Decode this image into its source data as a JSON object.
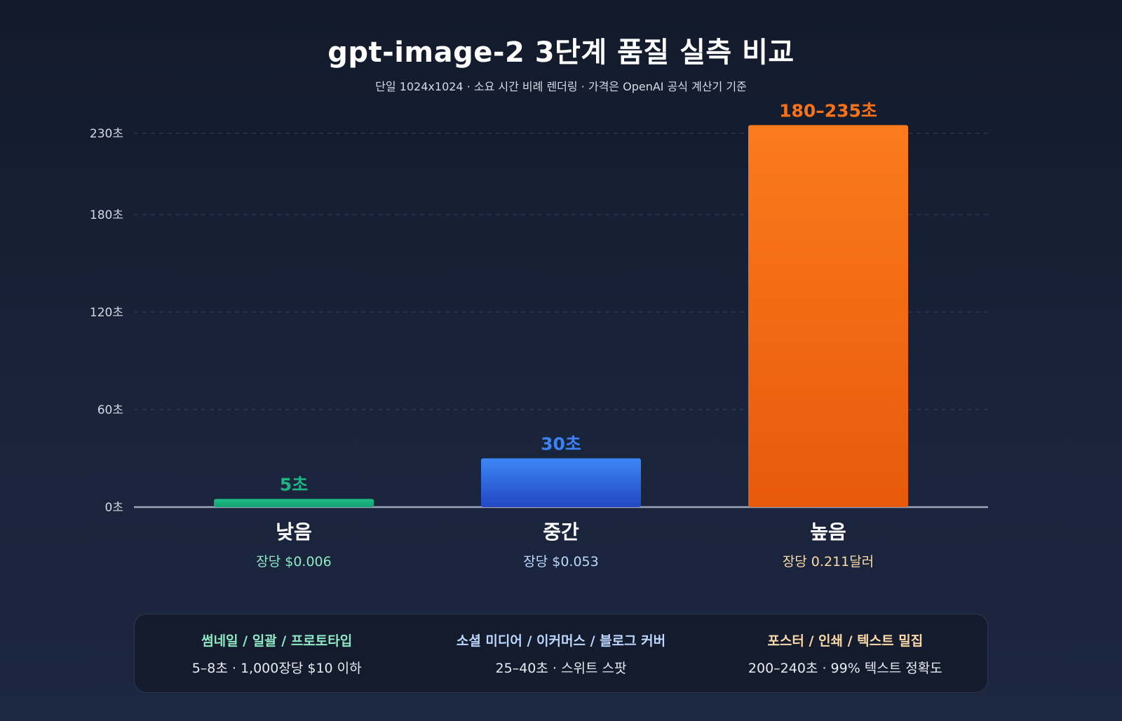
{
  "colors": {
    "low": "#1db583",
    "medium": "#3b82f6",
    "high": "#f97316",
    "low_text": "#8fe8c4",
    "medium_text": "#bdd7ff",
    "high_text": "#fcd9a8"
  },
  "chart_data": {
    "type": "bar",
    "title": "gpt-image-2 3단계 품질 실측 비교",
    "subtitle": "단일 1024x1024 · 소요 시간 비례 렌더링 · 가격은 OpenAI 공식 계산기 기준",
    "categories": [
      "낮음",
      "중간",
      "높음"
    ],
    "values": [
      5,
      30,
      235
    ],
    "value_labels": [
      "5초",
      "30초",
      "180–235초"
    ],
    "price_labels": [
      "장당 $0.006",
      "장당 $0.053",
      "장당 0.211달러"
    ],
    "y_ticks": [
      0,
      60,
      120,
      180,
      230
    ],
    "y_tick_labels": [
      "0초",
      "60초",
      "120초",
      "180초",
      "230초"
    ],
    "ylim": [
      0,
      235
    ],
    "grid": true,
    "legend": "none"
  },
  "info": [
    {
      "label": "썸네일 / 일괄 / 프로토타입",
      "desc": "5–8초 · 1,000장당 $10 이하"
    },
    {
      "label": "소셜 미디어 / 이커머스 / 블로그 커버",
      "desc": "25–40초 · 스위트 스팟"
    },
    {
      "label": "포스터 / 인쇄 / 텍스트 밀집",
      "desc": "200–240초 · 99% 텍스트 정확도"
    }
  ]
}
